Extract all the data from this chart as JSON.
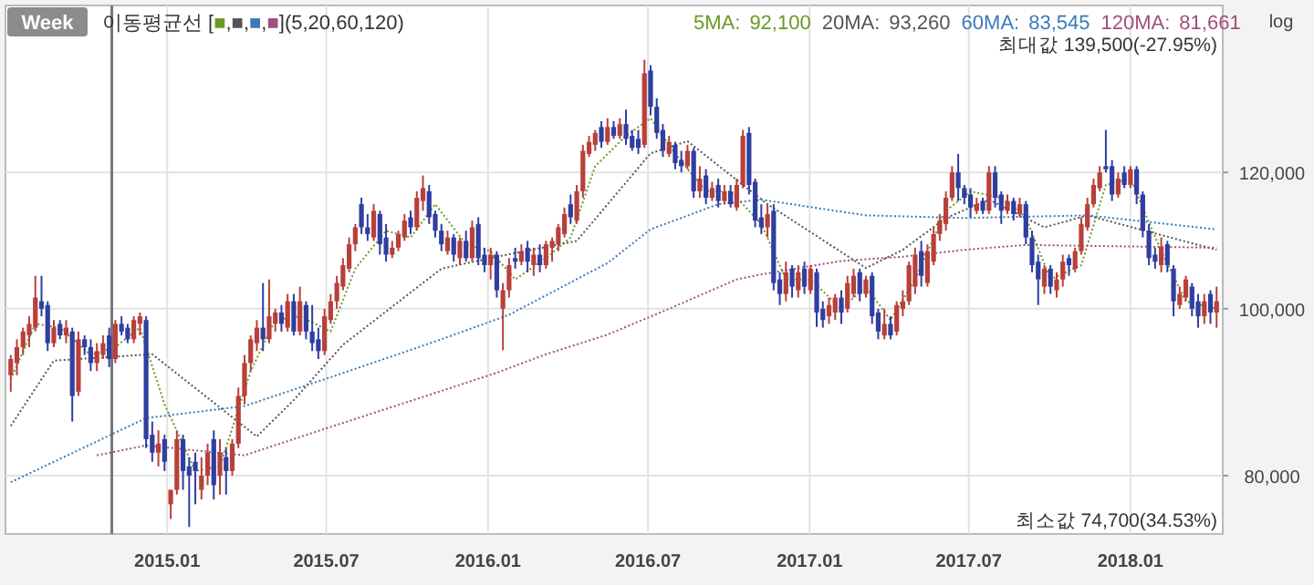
{
  "chart_data": {
    "type": "candlestick",
    "annotations": [
      "Week",
      "이동평균선",
      "[■,■,■,■](5,20,60,120)",
      "92,100",
      "93,260",
      "83,545",
      "81,661",
      "log",
      "최대값 139,500(-27.95%)",
      "최소값 74,700(34.53%)"
    ],
    "x": [
      "2014-07-07",
      "2014-07-14",
      "2014-07-21",
      "2014-07-28",
      "2014-08-04",
      "2014-08-11",
      "2014-08-18",
      "2014-08-25",
      "2014-09-01",
      "2014-09-08",
      "2014-09-15",
      "2014-09-22",
      "2014-09-29",
      "2014-10-06",
      "2014-10-13",
      "2014-10-20",
      "2014-10-27",
      "2014-11-03",
      "2014-11-10",
      "2014-11-17",
      "2014-11-24",
      "2014-12-01",
      "2014-12-08",
      "2014-12-15",
      "2014-12-22",
      "2014-12-29",
      "2015-01-05",
      "2015-01-12",
      "2015-01-19",
      "2015-01-26",
      "2015-02-02",
      "2015-02-09",
      "2015-02-16",
      "2015-02-23",
      "2015-03-02",
      "2015-03-09",
      "2015-03-16",
      "2015-03-23",
      "2015-03-30",
      "2015-04-06",
      "2015-04-13",
      "2015-04-20",
      "2015-04-27",
      "2015-05-04",
      "2015-05-11",
      "2015-05-18",
      "2015-05-25",
      "2015-06-01",
      "2015-06-08",
      "2015-06-15",
      "2015-06-22",
      "2015-06-29",
      "2015-07-06",
      "2015-07-13",
      "2015-07-20",
      "2015-07-27",
      "2015-08-03",
      "2015-08-10",
      "2015-08-17",
      "2015-08-24",
      "2015-08-31",
      "2015-09-07",
      "2015-09-14",
      "2015-09-21",
      "2015-09-28",
      "2015-10-05",
      "2015-10-12",
      "2015-10-19",
      "2015-10-26",
      "2015-11-02",
      "2015-11-09",
      "2015-11-16",
      "2015-11-23",
      "2015-11-30",
      "2015-12-07",
      "2015-12-14",
      "2015-12-21",
      "2015-12-28",
      "2016-01-04",
      "2016-01-11",
      "2016-01-18",
      "2016-01-25",
      "2016-02-01",
      "2016-02-08",
      "2016-02-15",
      "2016-02-22",
      "2016-02-29",
      "2016-03-07",
      "2016-03-14",
      "2016-03-21",
      "2016-03-28",
      "2016-04-04",
      "2016-04-11",
      "2016-04-18",
      "2016-04-25",
      "2016-05-02",
      "2016-05-09",
      "2016-05-16",
      "2016-05-23",
      "2016-05-30",
      "2016-06-06",
      "2016-06-13",
      "2016-06-20",
      "2016-06-27",
      "2016-07-04",
      "2016-07-11",
      "2016-07-18",
      "2016-07-25",
      "2016-08-01",
      "2016-08-08",
      "2016-08-15",
      "2016-08-22",
      "2016-08-29",
      "2016-09-05",
      "2016-09-12",
      "2016-09-19",
      "2016-09-26",
      "2016-10-03",
      "2016-10-10",
      "2016-10-17",
      "2016-10-24",
      "2016-10-31",
      "2016-11-07",
      "2016-11-14",
      "2016-11-21",
      "2016-11-28",
      "2016-12-05",
      "2016-12-12",
      "2016-12-19",
      "2016-12-26",
      "2017-01-02",
      "2017-01-09",
      "2017-01-16",
      "2017-01-23",
      "2017-01-30",
      "2017-02-06",
      "2017-02-13",
      "2017-02-20",
      "2017-02-27",
      "2017-03-06",
      "2017-03-13",
      "2017-03-20",
      "2017-03-27",
      "2017-04-03",
      "2017-04-10",
      "2017-04-17",
      "2017-04-24",
      "2017-05-01",
      "2017-05-08",
      "2017-05-15",
      "2017-05-22",
      "2017-05-29",
      "2017-06-05",
      "2017-06-12",
      "2017-06-19",
      "2017-06-26",
      "2017-07-03",
      "2017-07-10",
      "2017-07-17",
      "2017-07-24",
      "2017-07-31",
      "2017-08-07",
      "2017-08-14",
      "2017-08-21",
      "2017-08-28",
      "2017-09-04",
      "2017-09-11",
      "2017-09-18",
      "2017-09-25",
      "2017-10-02",
      "2017-10-09",
      "2017-10-16",
      "2017-10-23",
      "2017-10-30",
      "2017-11-06",
      "2017-11-13",
      "2017-11-20",
      "2017-11-27",
      "2017-12-04",
      "2017-12-11",
      "2017-12-18",
      "2017-12-25",
      "2018-01-01",
      "2018-01-08",
      "2018-01-15",
      "2018-01-22",
      "2018-01-29",
      "2018-02-05",
      "2018-02-12",
      "2018-02-19",
      "2018-02-26",
      "2018-03-05",
      "2018-03-12",
      "2018-03-19",
      "2018-03-26",
      "2018-04-02",
      "2018-04-09"
    ],
    "ohlc": [
      [
        91500,
        94000,
        89500,
        93500
      ],
      [
        93000,
        96000,
        91500,
        95000
      ],
      [
        95000,
        97500,
        94000,
        97000
      ],
      [
        96500,
        99000,
        95000,
        98000
      ],
      [
        97500,
        104500,
        97000,
        101500
      ],
      [
        101000,
        104500,
        99000,
        100000
      ],
      [
        100500,
        101000,
        94500,
        95500
      ],
      [
        95500,
        98500,
        95000,
        97500
      ],
      [
        98000,
        98500,
        96000,
        96500
      ],
      [
        96500,
        98500,
        95500,
        97500
      ],
      [
        97000,
        97500,
        86000,
        89000
      ],
      [
        89500,
        97000,
        89000,
        96000
      ],
      [
        96000,
        96500,
        94000,
        95000
      ],
      [
        95000,
        96000,
        92000,
        93000
      ],
      [
        93000,
        95500,
        92000,
        94500
      ],
      [
        94000,
        96500,
        93500,
        95500
      ],
      [
        96500,
        97500,
        92500,
        93500
      ],
      [
        93500,
        98500,
        93000,
        98000
      ],
      [
        98000,
        99000,
        96500,
        97000
      ],
      [
        97500,
        98000,
        95500,
        96000
      ],
      [
        96000,
        99000,
        95500,
        98500
      ],
      [
        98000,
        99500,
        96500,
        99000
      ],
      [
        98500,
        99000,
        83000,
        84000
      ],
      [
        84500,
        86000,
        81500,
        82500
      ],
      [
        82500,
        85000,
        81000,
        83500
      ],
      [
        84000,
        84500,
        80500,
        81500
      ],
      [
        77000,
        78500,
        75500,
        78500
      ],
      [
        78500,
        85000,
        78000,
        84000
      ],
      [
        84000,
        84500,
        78500,
        80500
      ],
      [
        81000,
        82000,
        74700,
        80000
      ],
      [
        81500,
        82500,
        77000,
        80500
      ],
      [
        78500,
        82000,
        77500,
        80000
      ],
      [
        80000,
        83500,
        79000,
        82500
      ],
      [
        84000,
        85000,
        77500,
        79000
      ],
      [
        80000,
        84000,
        78000,
        82500
      ],
      [
        82000,
        83000,
        78000,
        80500
      ],
      [
        80500,
        84000,
        80000,
        83500
      ],
      [
        83500,
        90000,
        83000,
        89000
      ],
      [
        89000,
        94000,
        88000,
        93000
      ],
      [
        93000,
        96500,
        92000,
        96000
      ],
      [
        95500,
        98500,
        94500,
        97500
      ],
      [
        97500,
        103500,
        94500,
        96000
      ],
      [
        96000,
        104000,
        95500,
        99000
      ],
      [
        98000,
        100000,
        97000,
        99500
      ],
      [
        99500,
        100500,
        97000,
        98000
      ],
      [
        97500,
        102000,
        97000,
        101000
      ],
      [
        101000,
        102000,
        96500,
        97000
      ],
      [
        97000,
        103000,
        96500,
        101000
      ],
      [
        100500,
        101000,
        96000,
        97000
      ],
      [
        97000,
        100500,
        94500,
        95500
      ],
      [
        96000,
        97500,
        93500,
        94500
      ],
      [
        94500,
        100000,
        94000,
        99000
      ],
      [
        98500,
        102000,
        98000,
        101000
      ],
      [
        101000,
        104500,
        100000,
        103500
      ],
      [
        103000,
        107000,
        102500,
        106000
      ],
      [
        105500,
        110000,
        105000,
        109000
      ],
      [
        109000,
        112000,
        108000,
        111500
      ],
      [
        115000,
        116000,
        110500,
        111500
      ],
      [
        111500,
        113500,
        109500,
        110500
      ],
      [
        110000,
        115000,
        109500,
        114000
      ],
      [
        113500,
        114000,
        107500,
        109000
      ],
      [
        110000,
        112000,
        106500,
        107500
      ],
      [
        107500,
        109500,
        107000,
        108500
      ],
      [
        108500,
        111000,
        108000,
        110500
      ],
      [
        110000,
        113500,
        109500,
        112500
      ],
      [
        113000,
        114000,
        110500,
        111500
      ],
      [
        111500,
        117000,
        111000,
        116000
      ],
      [
        115500,
        119500,
        114000,
        117500
      ],
      [
        117000,
        118000,
        112000,
        113000
      ],
      [
        113500,
        114000,
        110000,
        111000
      ],
      [
        111000,
        112000,
        108000,
        109000
      ],
      [
        108000,
        111000,
        107500,
        110000
      ],
      [
        110000,
        110500,
        106500,
        107500
      ],
      [
        107000,
        110000,
        106000,
        109500
      ],
      [
        109500,
        111000,
        106500,
        107000
      ],
      [
        107000,
        112500,
        106500,
        111500
      ],
      [
        112000,
        113000,
        106000,
        107000
      ],
      [
        107500,
        108500,
        105000,
        106000
      ],
      [
        106000,
        108500,
        104000,
        107500
      ],
      [
        107500,
        108000,
        101500,
        102500
      ],
      [
        100000,
        103500,
        94600,
        102500
      ],
      [
        102500,
        107000,
        101500,
        106000
      ],
      [
        107000,
        108500,
        105500,
        106500
      ],
      [
        106500,
        109000,
        106000,
        108000
      ],
      [
        108500,
        109500,
        105000,
        106500
      ],
      [
        106000,
        108500,
        104500,
        107500
      ],
      [
        107500,
        109000,
        105000,
        106000
      ],
      [
        106000,
        109500,
        105500,
        109000
      ],
      [
        108500,
        110000,
        106500,
        109500
      ],
      [
        109000,
        112000,
        108000,
        111500
      ],
      [
        110500,
        114500,
        110000,
        113500
      ],
      [
        115000,
        116500,
        112000,
        113000
      ],
      [
        112500,
        118000,
        112000,
        117000
      ],
      [
        117000,
        124500,
        116000,
        123500
      ],
      [
        123000,
        126000,
        122500,
        125000
      ],
      [
        124500,
        127000,
        123500,
        126500
      ],
      [
        127500,
        128500,
        124000,
        125000
      ],
      [
        125000,
        129000,
        124500,
        127500
      ],
      [
        127500,
        128500,
        125500,
        126000
      ],
      [
        126000,
        129000,
        125500,
        128000
      ],
      [
        128000,
        130500,
        124500,
        125500
      ],
      [
        126000,
        127000,
        123500,
        124000
      ],
      [
        125500,
        127000,
        123000,
        124000
      ],
      [
        124500,
        139500,
        124000,
        137000
      ],
      [
        137500,
        138500,
        129500,
        131000
      ],
      [
        131000,
        132500,
        125500,
        126500
      ],
      [
        127000,
        128000,
        122500,
        123500
      ],
      [
        123000,
        126000,
        122500,
        125000
      ],
      [
        124500,
        125000,
        120500,
        121500
      ],
      [
        122000,
        123500,
        120000,
        121000
      ],
      [
        121000,
        124500,
        120500,
        123500
      ],
      [
        123500,
        124000,
        116000,
        117000
      ],
      [
        117000,
        121000,
        116000,
        119000
      ],
      [
        119500,
        120500,
        115000,
        116000
      ],
      [
        116000,
        118500,
        115500,
        117500
      ],
      [
        118000,
        119000,
        114500,
        115500
      ],
      [
        115500,
        118000,
        115000,
        117000
      ],
      [
        117000,
        118000,
        114500,
        115000
      ],
      [
        114500,
        119000,
        114000,
        118000
      ],
      [
        118000,
        127000,
        117500,
        126000
      ],
      [
        126500,
        127500,
        116500,
        118000
      ],
      [
        118500,
        119000,
        111500,
        112500
      ],
      [
        113000,
        115000,
        110500,
        111500
      ],
      [
        111500,
        115000,
        110000,
        113500
      ],
      [
        114000,
        115000,
        102500,
        103500
      ],
      [
        104000,
        105000,
        100500,
        102000
      ],
      [
        102000,
        106500,
        101000,
        105000
      ],
      [
        105500,
        106000,
        101500,
        103000
      ],
      [
        102500,
        106000,
        101500,
        105000
      ],
      [
        105500,
        106500,
        102000,
        103000
      ],
      [
        102500,
        106000,
        102000,
        105500
      ],
      [
        105000,
        105500,
        97600,
        99500
      ],
      [
        100000,
        101000,
        97500,
        98500
      ],
      [
        99000,
        101500,
        98000,
        100500
      ],
      [
        99500,
        102000,
        98500,
        101500
      ],
      [
        101500,
        102500,
        98000,
        99500
      ],
      [
        100000,
        104500,
        99500,
        103500
      ],
      [
        102000,
        105500,
        101500,
        104500
      ],
      [
        105000,
        105500,
        101000,
        102000
      ],
      [
        102000,
        104500,
        101500,
        104000
      ],
      [
        104500,
        105000,
        98000,
        99000
      ],
      [
        99500,
        100000,
        96000,
        97000
      ],
      [
        96500,
        100000,
        96000,
        98000
      ],
      [
        98000,
        99000,
        96000,
        96500
      ],
      [
        97000,
        101000,
        96500,
        100500
      ],
      [
        100000,
        102500,
        99000,
        101000
      ],
      [
        101000,
        106500,
        100500,
        106000
      ],
      [
        103000,
        108500,
        102000,
        107500
      ],
      [
        108000,
        109500,
        103000,
        104500
      ],
      [
        103500,
        109000,
        103000,
        108000
      ],
      [
        106500,
        111500,
        106000,
        110500
      ],
      [
        110500,
        113500,
        109500,
        112500
      ],
      [
        112000,
        117000,
        111000,
        116000
      ],
      [
        116000,
        121000,
        115500,
        120000
      ],
      [
        120000,
        123000,
        115500,
        117500
      ],
      [
        117500,
        118000,
        115000,
        116000
      ],
      [
        116500,
        117500,
        113000,
        114500
      ],
      [
        114000,
        116000,
        113500,
        115000
      ],
      [
        115500,
        116000,
        113500,
        114000
      ],
      [
        114000,
        121000,
        113500,
        120000
      ],
      [
        120000,
        121000,
        114500,
        116000
      ],
      [
        116500,
        117000,
        112000,
        114000
      ],
      [
        114000,
        116500,
        113500,
        115500
      ],
      [
        115500,
        116000,
        112500,
        113500
      ],
      [
        113500,
        116000,
        113000,
        115000
      ],
      [
        115000,
        115500,
        109000,
        110000
      ],
      [
        110000,
        111000,
        105000,
        106000
      ],
      [
        106500,
        107500,
        100500,
        104000
      ],
      [
        103000,
        106000,
        102000,
        105500
      ],
      [
        105500,
        106000,
        102000,
        103000
      ],
      [
        102500,
        105000,
        101500,
        104000
      ],
      [
        104000,
        107500,
        103000,
        106500
      ],
      [
        107000,
        107500,
        104500,
        106000
      ],
      [
        105500,
        108500,
        105000,
        108000
      ],
      [
        108000,
        113000,
        107500,
        112000
      ],
      [
        111500,
        116000,
        111000,
        115000
      ],
      [
        115000,
        119000,
        114500,
        118000
      ],
      [
        117500,
        121000,
        117000,
        120000
      ],
      [
        121000,
        127000,
        120000,
        120500
      ],
      [
        121000,
        122000,
        115500,
        116500
      ],
      [
        116500,
        120000,
        116000,
        119000
      ],
      [
        120000,
        121000,
        117500,
        118000
      ],
      [
        118000,
        121000,
        117500,
        120500
      ],
      [
        120500,
        121000,
        115000,
        116500
      ],
      [
        116500,
        117000,
        110000,
        111000
      ],
      [
        111000,
        112000,
        106000,
        107000
      ],
      [
        107500,
        108500,
        105500,
        106500
      ],
      [
        106000,
        110000,
        105000,
        108500
      ],
      [
        109000,
        109500,
        105000,
        106000
      ],
      [
        105500,
        106000,
        99000,
        101000
      ],
      [
        100500,
        103000,
        100000,
        102000
      ],
      [
        101500,
        104500,
        101000,
        104000
      ],
      [
        103000,
        103500,
        99000,
        100000
      ],
      [
        101000,
        102000,
        97500,
        99000
      ],
      [
        99000,
        102000,
        98000,
        101000
      ],
      [
        102000,
        102500,
        98000,
        99500
      ],
      [
        99500,
        103000,
        97500,
        101000
      ]
    ],
    "series": [
      {
        "name": "5MA:",
        "color": "#6b9a22",
        "type": "line",
        "x": [
          "2014-07-07",
          "2014-08-04",
          "2014-09-01",
          "2014-10-06",
          "2014-11-03",
          "2014-12-01",
          "2014-12-29",
          "2015-02-02",
          "2015-03-02",
          "2015-04-06",
          "2015-05-04",
          "2015-06-01",
          "2015-07-06",
          "2015-08-03",
          "2015-09-07",
          "2015-10-05",
          "2015-11-02",
          "2015-12-07",
          "2016-01-04",
          "2016-02-01",
          "2016-03-07",
          "2016-04-04",
          "2016-05-02",
          "2016-06-06",
          "2016-07-04",
          "2016-08-01",
          "2016-09-05",
          "2016-10-03",
          "2016-11-07",
          "2016-12-05",
          "2017-01-02",
          "2017-02-06",
          "2017-03-06",
          "2017-04-03",
          "2017-05-01",
          "2017-06-05",
          "2017-07-03",
          "2017-08-07",
          "2017-09-04",
          "2017-10-02",
          "2017-11-06",
          "2017-12-04",
          "2018-01-01",
          "2018-02-05",
          "2018-03-05",
          "2018-04-09"
        ],
        "values": [
          91000,
          98000,
          97500,
          94000,
          95000,
          97500,
          88000,
          80500,
          81000,
          92000,
          98500,
          99000,
          97000,
          105500,
          111000,
          110000,
          115000,
          109000,
          108000,
          104000,
          107000,
          110000,
          121000,
          126000,
          129000,
          123000,
          117000,
          117000,
          112000,
          104000,
          104000,
          100000,
          103000,
          98500,
          104000,
          114000,
          117000,
          116000,
          113000,
          104000,
          106000,
          118000,
          119000,
          108000,
          101000,
          100000
        ]
      },
      {
        "name": "20MA:",
        "color": "#555555",
        "type": "line",
        "x": [
          "2014-07-07",
          "2014-08-25",
          "2014-12-15",
          "2015-04-13",
          "2015-05-25",
          "2015-07-20",
          "2015-11-09",
          "2016-01-11",
          "2016-04-11",
          "2016-07-04",
          "2016-08-15",
          "2016-11-14",
          "2017-03-06",
          "2017-04-17",
          "2017-06-05",
          "2017-07-24",
          "2017-09-25",
          "2017-11-13",
          "2018-04-09"
        ],
        "values": [
          85500,
          93300,
          94100,
          84300,
          88500,
          95300,
          105500,
          107200,
          109500,
          123100,
          125100,
          115000,
          105600,
          108200,
          112900,
          115700,
          111500,
          113300,
          108200
        ]
      },
      {
        "name": "60MA:",
        "color": "#3a7ab8",
        "type": "line",
        "x": [
          "2014-07-07",
          "2014-12-08",
          "2015-03-30",
          "2015-07-13",
          "2015-11-09",
          "2016-01-25",
          "2016-05-16",
          "2016-07-04",
          "2016-09-19",
          "2016-11-07",
          "2017-03-06",
          "2017-06-26",
          "2017-11-13",
          "2018-04-09"
        ],
        "values": [
          79300,
          86400,
          87800,
          91500,
          96000,
          99200,
          106300,
          111200,
          115000,
          115700,
          113300,
          112900,
          113300,
          111200
        ]
      },
      {
        "name": "120MA:",
        "color": "#a0507a",
        "type": "line",
        "x": [
          "2014-10-13",
          "2014-12-08",
          "2015-03-30",
          "2015-06-15",
          "2015-11-09",
          "2016-01-11",
          "2016-03-07",
          "2016-05-16",
          "2016-07-25",
          "2016-10-10",
          "2016-11-07",
          "2017-02-06",
          "2017-04-17",
          "2017-06-26",
          "2017-09-04",
          "2018-04-09"
        ],
        "values": [
          82200,
          83300,
          82200,
          84700,
          89600,
          91800,
          94100,
          96600,
          100000,
          104000,
          104700,
          106600,
          107200,
          108200,
          108900,
          108500
        ]
      }
    ],
    "line_style": "dotted",
    "log": true,
    "grid": true,
    "xlim": [
      "2014-07-01",
      "2018-04-16"
    ],
    "xticks": [
      {
        "value": "2015-01-01",
        "label": "2015.01"
      },
      {
        "value": "2015-07-01",
        "label": "2015.07"
      },
      {
        "value": "2016-01-01",
        "label": "2016.01"
      },
      {
        "value": "2016-07-01",
        "label": "2016.07"
      },
      {
        "value": "2017-01-01",
        "label": "2017.01"
      },
      {
        "value": "2017-07-01",
        "label": "2017.07"
      },
      {
        "value": "2018-01-01",
        "label": "2018.01"
      }
    ],
    "ylim": [
      74000,
      150000
    ],
    "yticks": [
      {
        "value": 80000,
        "label": "80,000"
      },
      {
        "value": 100000,
        "label": "100,000"
      },
      {
        "value": 120000,
        "label": "120,000"
      }
    ],
    "ref_lines": [
      {
        "axis": "x",
        "value": "2014-10-30",
        "color": "#777777"
      }
    ]
  }
}
